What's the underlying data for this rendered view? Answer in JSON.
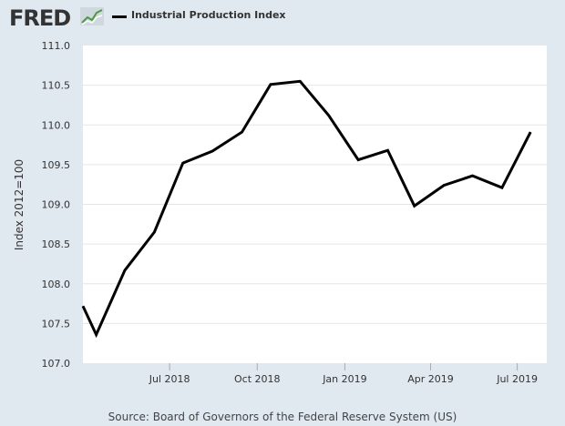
{
  "header": {
    "logo_text": "FRED",
    "logo_graph_icon": "line-chart-icon",
    "legend_label": "Industrial Production Index"
  },
  "colors": {
    "background": "#e1e9f0",
    "plot_background": "#ffffff",
    "series_line": "#000000",
    "grid": "#e6e6e6",
    "text": "#333333"
  },
  "chart_data": {
    "type": "line",
    "title": "",
    "xlabel": "",
    "ylabel": "Index 2012=100",
    "ylim": [
      107.0,
      111.0
    ],
    "yticks": [
      "107.0",
      "107.5",
      "108.0",
      "108.5",
      "109.0",
      "109.5",
      "110.0",
      "110.5",
      "111.0"
    ],
    "xlim": [
      "2018-04-01",
      "2019-08-01"
    ],
    "xticks": [
      {
        "label": "Jul 2018",
        "date": "2018-07-01"
      },
      {
        "label": "Oct 2018",
        "date": "2018-10-01"
      },
      {
        "label": "Jan 2019",
        "date": "2019-01-01"
      },
      {
        "label": "Apr 2019",
        "date": "2019-04-01"
      },
      {
        "label": "Jul 2019",
        "date": "2019-07-01"
      }
    ],
    "grid": true,
    "legend": "top-left",
    "series": [
      {
        "name": "Industrial Production Index",
        "points": [
          {
            "x": "2018-04-01",
            "y": 107.72
          },
          {
            "x": "2018-04-15",
            "y": 107.36
          },
          {
            "x": "2018-05-15",
            "y": 108.17
          },
          {
            "x": "2018-06-15",
            "y": 108.65
          },
          {
            "x": "2018-07-15",
            "y": 109.52
          },
          {
            "x": "2018-08-15",
            "y": 109.67
          },
          {
            "x": "2018-09-15",
            "y": 109.91
          },
          {
            "x": "2018-10-15",
            "y": 110.51
          },
          {
            "x": "2018-11-15",
            "y": 110.55
          },
          {
            "x": "2018-12-15",
            "y": 110.12
          },
          {
            "x": "2019-01-15",
            "y": 109.56
          },
          {
            "x": "2019-02-15",
            "y": 109.68
          },
          {
            "x": "2019-03-15",
            "y": 108.98
          },
          {
            "x": "2019-04-15",
            "y": 109.24
          },
          {
            "x": "2019-05-15",
            "y": 109.36
          },
          {
            "x": "2019-06-15",
            "y": 109.21
          },
          {
            "x": "2019-07-15",
            "y": 109.91
          }
        ]
      }
    ]
  },
  "footer": {
    "source": "Source: Board of Governors of the Federal Reserve System (US)"
  }
}
